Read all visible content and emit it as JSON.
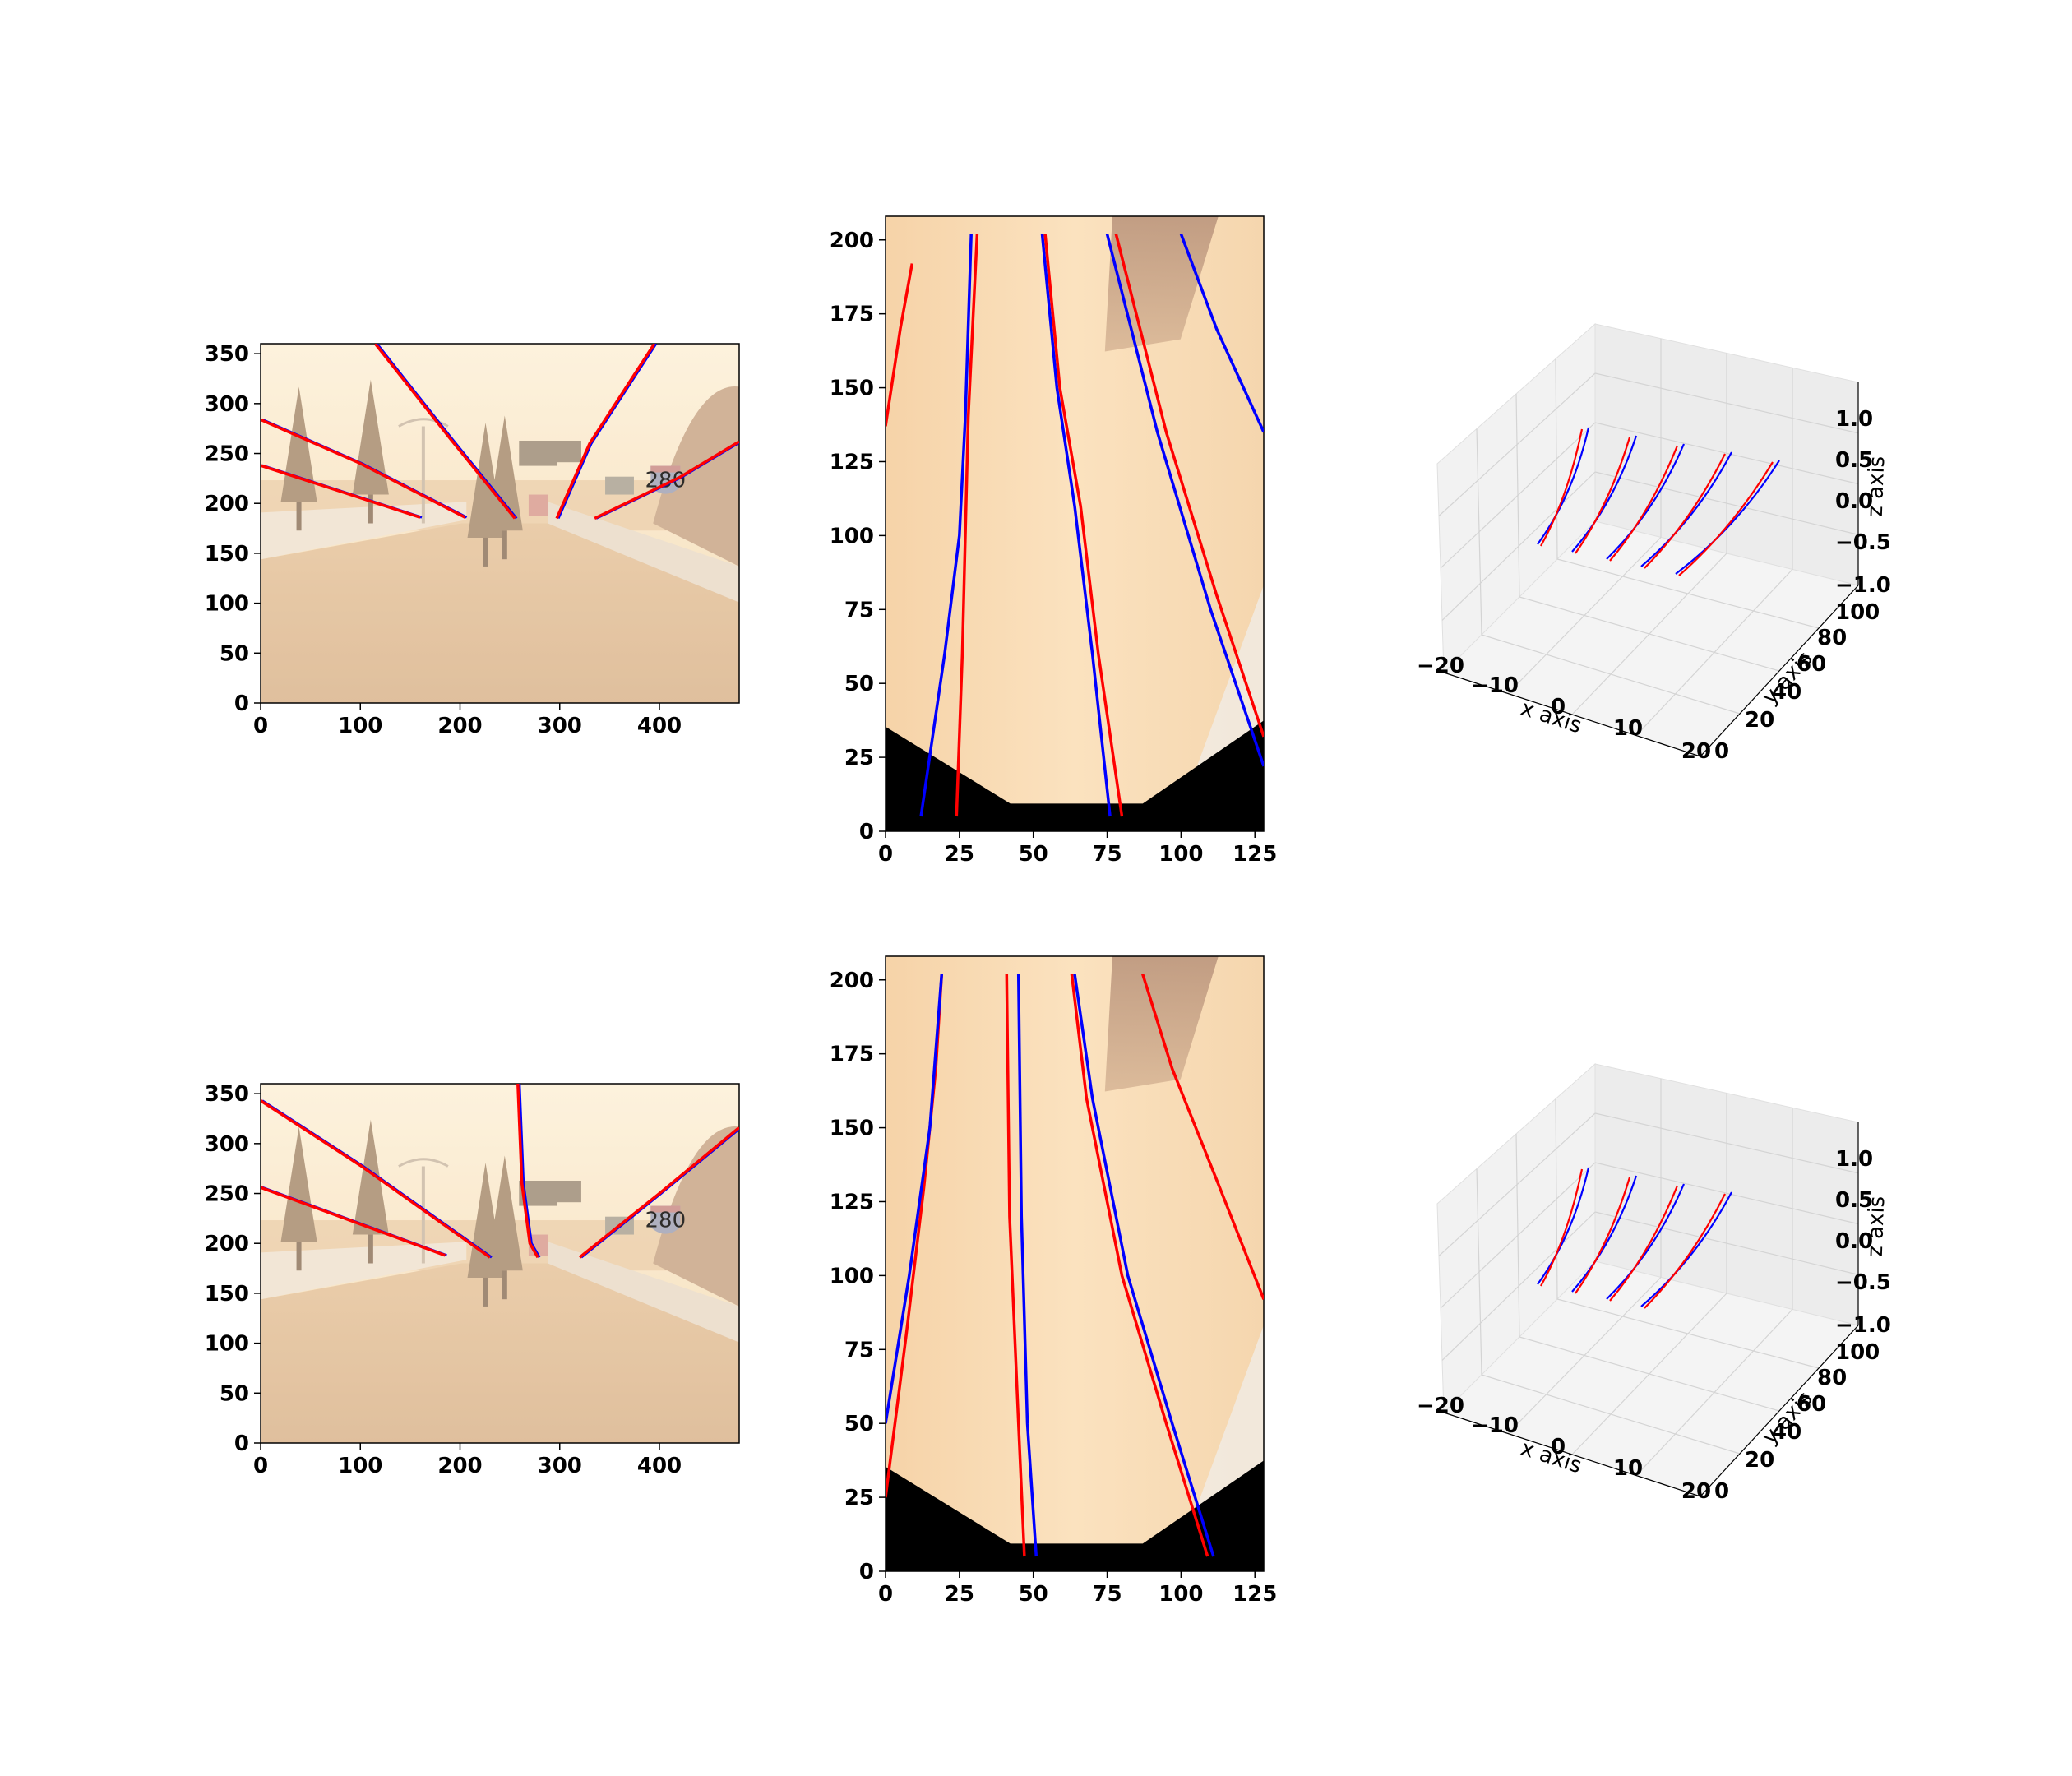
{
  "chart_data": [
    {
      "type": "image",
      "panel": "camera view",
      "row": 1,
      "x_ticks": [
        "0",
        "100",
        "200",
        "300",
        "400"
      ],
      "y_ticks": [
        "0",
        "50",
        "100",
        "150",
        "200",
        "250",
        "300",
        "350"
      ],
      "xlim": [
        0,
        480
      ],
      "ylim": [
        360,
        0
      ],
      "sign_text": "280",
      "colors": {
        "gt": "#0000ff",
        "pred": "#ff0000"
      },
      "lanes": [
        {
          "name": "lane-1",
          "points": [
            [
              0,
              238
            ],
            [
              160,
              186
            ]
          ]
        },
        {
          "name": "lane-2",
          "points": [
            [
              0,
              284
            ],
            [
              100,
              240
            ],
            [
              205,
              186
            ]
          ]
        },
        {
          "name": "lane-3",
          "points": [
            [
              115,
              360
            ],
            [
              190,
              265
            ],
            [
              255,
              185
            ]
          ]
        },
        {
          "name": "lane-4",
          "points": [
            [
              297,
              185
            ],
            [
              330,
              260
            ],
            [
              395,
              360
            ]
          ]
        },
        {
          "name": "lane-5",
          "points": [
            [
              335,
              185
            ],
            [
              420,
              226
            ],
            [
              480,
              262
            ]
          ]
        }
      ]
    },
    {
      "type": "image",
      "panel": "top view",
      "row": 1,
      "x_ticks": [
        "0",
        "25",
        "50",
        "75",
        "100",
        "125"
      ],
      "y_ticks": [
        "0",
        "25",
        "50",
        "75",
        "100",
        "125",
        "150",
        "175",
        "200"
      ],
      "xlim": [
        0,
        128
      ],
      "ylim": [
        208,
        0
      ],
      "colors": {
        "gt": "#0000ff",
        "pred": "#ff0000"
      },
      "lanes": [
        {
          "name": "lane-1",
          "points": [
            [
              0,
              137
            ],
            [
              5,
              170
            ],
            [
              9,
              192
            ]
          ]
        },
        {
          "name": "lane-2",
          "points": [
            [
              12,
              5
            ],
            [
              20,
              60
            ],
            [
              25,
              100
            ],
            [
              27,
              140
            ],
            [
              29,
              202
            ]
          ]
        },
        {
          "name": "lane-3",
          "points": [
            [
              24,
              5
            ],
            [
              26,
              60
            ],
            [
              27,
              100
            ],
            [
              28,
              140
            ],
            [
              31,
              202
            ]
          ]
        },
        {
          "name": "lane-4",
          "points": [
            [
              76,
              5
            ],
            [
              70,
              60
            ],
            [
              64,
              110
            ],
            [
              58,
              150
            ],
            [
              53,
              202
            ]
          ]
        },
        {
          "name": "lane-5",
          "points": [
            [
              80,
              5
            ],
            [
              72,
              60
            ],
            [
              66,
              110
            ],
            [
              59,
              150
            ],
            [
              54,
              202
            ]
          ]
        },
        {
          "name": "lane-6",
          "points": [
            [
              128,
              22
            ],
            [
              110,
              75
            ],
            [
              92,
              135
            ],
            [
              75,
              202
            ]
          ]
        },
        {
          "name": "lane-7",
          "points": [
            [
              128,
              32
            ],
            [
              112,
              80
            ],
            [
              95,
              135
            ],
            [
              78,
              202
            ]
          ]
        },
        {
          "name": "lane-8",
          "points": [
            [
              128,
              135
            ],
            [
              112,
              170
            ],
            [
              100,
              202
            ]
          ]
        }
      ]
    },
    {
      "type": "line3d",
      "panel": "3D lanes",
      "row": 1,
      "xlabel": "x axis",
      "ylabel": "y axis",
      "zlabel": "z axis",
      "x_ticks": [
        "−20",
        "−10",
        "0",
        "10",
        "20"
      ],
      "y_ticks": [
        "0",
        "20",
        "40",
        "60",
        "80",
        "100"
      ],
      "z_ticks": [
        "−1.0",
        "−0.5",
        "0.0",
        "0.5",
        "1.0"
      ],
      "xlim": [
        -20,
        20
      ],
      "ylim": [
        0,
        100
      ],
      "zlim": [
        -1,
        1
      ],
      "colors": {
        "gt": "#0000ff",
        "pred": "#ff0000"
      },
      "lane_count": 5
    },
    {
      "type": "image",
      "panel": "camera view",
      "row": 2,
      "x_ticks": [
        "0",
        "100",
        "200",
        "300",
        "400"
      ],
      "y_ticks": [
        "0",
        "50",
        "100",
        "150",
        "200",
        "250",
        "300",
        "350"
      ],
      "xlim": [
        0,
        480
      ],
      "ylim": [
        360,
        0
      ],
      "sign_text": "280",
      "colors": {
        "gt": "#0000ff",
        "pred": "#ff0000"
      },
      "lanes": [
        {
          "name": "lane-1",
          "points": [
            [
              0,
              256
            ],
            [
              185,
              188
            ]
          ]
        },
        {
          "name": "lane-2",
          "points": [
            [
              0,
              343
            ],
            [
              100,
              278
            ],
            [
              230,
              186
            ]
          ]
        },
        {
          "name": "lane-3",
          "points": [
            [
              258,
              360
            ],
            [
              262,
              260
            ],
            [
              270,
              200
            ],
            [
              278,
              186
            ]
          ]
        },
        {
          "name": "lane-4",
          "points": [
            [
              320,
              186
            ],
            [
              400,
              250
            ],
            [
              480,
              316
            ]
          ]
        }
      ]
    },
    {
      "type": "image",
      "panel": "top view",
      "row": 2,
      "x_ticks": [
        "0",
        "25",
        "50",
        "75",
        "100",
        "125"
      ],
      "y_ticks": [
        "0",
        "25",
        "50",
        "75",
        "100",
        "125",
        "150",
        "175",
        "200"
      ],
      "xlim": [
        0,
        128
      ],
      "ylim": [
        208,
        0
      ],
      "colors": {
        "gt": "#0000ff",
        "pred": "#ff0000"
      },
      "lanes": [
        {
          "name": "lane-1",
          "points": [
            [
              0,
              25
            ],
            [
              7,
              80
            ],
            [
              13,
              130
            ],
            [
              17,
              170
            ],
            [
              19,
              202
            ]
          ]
        },
        {
          "name": "lane-2",
          "points": [
            [
              0,
              50
            ],
            [
              8,
              100
            ],
            [
              15,
              150
            ],
            [
              19,
              202
            ]
          ]
        },
        {
          "name": "lane-3",
          "points": [
            [
              47,
              5
            ],
            [
              45,
              50
            ],
            [
              42,
              120
            ],
            [
              41,
              202
            ]
          ]
        },
        {
          "name": "lane-4",
          "points": [
            [
              51,
              5
            ],
            [
              48,
              50
            ],
            [
              46,
              120
            ],
            [
              45,
              202
            ]
          ]
        },
        {
          "name": "lane-5",
          "points": [
            [
              109,
              5
            ],
            [
              95,
              50
            ],
            [
              80,
              100
            ],
            [
              68,
              160
            ],
            [
              63,
              202
            ]
          ]
        },
        {
          "name": "lane-6",
          "points": [
            [
              111,
              5
            ],
            [
              97,
              50
            ],
            [
              82,
              100
            ],
            [
              70,
              160
            ],
            [
              64,
              202
            ]
          ]
        },
        {
          "name": "lane-7",
          "points": [
            [
              128,
              92
            ],
            [
              113,
              130
            ],
            [
              97,
              170
            ],
            [
              87,
              202
            ]
          ]
        }
      ]
    },
    {
      "type": "line3d",
      "panel": "3D lanes",
      "row": 2,
      "xlabel": "x axis",
      "ylabel": "y axis",
      "zlabel": "z axis",
      "x_ticks": [
        "−20",
        "−10",
        "0",
        "10",
        "20"
      ],
      "y_ticks": [
        "0",
        "20",
        "40",
        "60",
        "80",
        "100"
      ],
      "z_ticks": [
        "−1.0",
        "−0.5",
        "0.0",
        "0.5",
        "1.0"
      ],
      "xlim": [
        -20,
        20
      ],
      "ylim": [
        0,
        100
      ],
      "zlim": [
        -1,
        1
      ],
      "colors": {
        "gt": "#0000ff",
        "pred": "#ff0000"
      },
      "lane_count": 4
    }
  ]
}
